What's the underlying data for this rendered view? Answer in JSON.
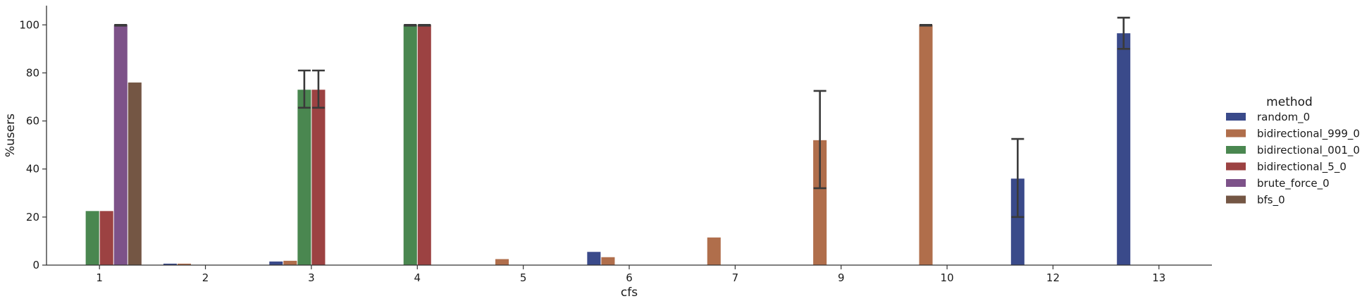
{
  "chart_data": {
    "type": "bar",
    "xlabel": "cfs",
    "ylabel": "%users",
    "ylim": [
      0,
      108
    ],
    "yticks": [
      0,
      20,
      40,
      60,
      80,
      100
    ],
    "grid": false,
    "legend_placement": "right",
    "legend_title": "method",
    "categories": [
      "1",
      "2",
      "3",
      "4",
      "5",
      "6",
      "7",
      "9",
      "10",
      "12",
      "13"
    ],
    "series": [
      {
        "name": "random_0",
        "color": "#3a4a8a",
        "values": [
          0,
          0.6,
          1.5,
          0,
          0,
          5.5,
          0,
          0,
          0,
          36,
          96.5
        ],
        "err_low": [
          null,
          null,
          null,
          null,
          null,
          null,
          null,
          null,
          null,
          20,
          90
        ],
        "err_high": [
          null,
          null,
          null,
          null,
          null,
          null,
          null,
          null,
          null,
          52.5,
          103
        ]
      },
      {
        "name": "bidirectional_999_0",
        "color": "#b06e4b",
        "values": [
          0,
          0.6,
          1.8,
          0,
          2.5,
          3.3,
          11.5,
          52,
          100,
          0,
          0
        ],
        "err_low": [
          null,
          null,
          null,
          null,
          null,
          null,
          null,
          32,
          99.7,
          null,
          null
        ],
        "err_high": [
          null,
          null,
          null,
          null,
          null,
          null,
          null,
          72.5,
          100,
          null,
          null
        ]
      },
      {
        "name": "bidirectional_001_0",
        "color": "#4a8750",
        "values": [
          22.5,
          0,
          73,
          100,
          0,
          0,
          0,
          0,
          0,
          0,
          0
        ],
        "err_low": [
          null,
          null,
          65.5,
          99.7,
          null,
          null,
          null,
          null,
          null,
          null,
          null
        ],
        "err_high": [
          null,
          null,
          81,
          100,
          null,
          null,
          null,
          null,
          null,
          null,
          null
        ]
      },
      {
        "name": "bidirectional_5_0",
        "color": "#9c4242",
        "values": [
          22.5,
          0,
          73,
          100,
          0,
          0,
          0,
          0,
          0,
          0,
          0
        ],
        "err_low": [
          null,
          null,
          65.5,
          99.7,
          null,
          null,
          null,
          null,
          null,
          null,
          null
        ],
        "err_high": [
          null,
          null,
          81,
          100,
          null,
          null,
          null,
          null,
          null,
          null,
          null
        ]
      },
      {
        "name": "brute_force_0",
        "color": "#7d5289",
        "values": [
          100,
          0,
          0,
          0,
          0,
          0,
          0,
          0,
          0,
          0,
          0
        ],
        "err_low": [
          99.7,
          null,
          null,
          null,
          null,
          null,
          null,
          null,
          null,
          null,
          null
        ],
        "err_high": [
          100,
          null,
          null,
          null,
          null,
          null,
          null,
          null,
          null,
          null,
          null
        ]
      },
      {
        "name": "bfs_0",
        "color": "#745644",
        "values": [
          76,
          0,
          0,
          0,
          0,
          0,
          0,
          0,
          0,
          0,
          0
        ],
        "err_low": [
          null,
          null,
          null,
          null,
          null,
          null,
          null,
          null,
          null,
          null,
          null
        ],
        "err_high": [
          null,
          null,
          null,
          null,
          null,
          null,
          null,
          null,
          null,
          null,
          null
        ]
      }
    ]
  }
}
